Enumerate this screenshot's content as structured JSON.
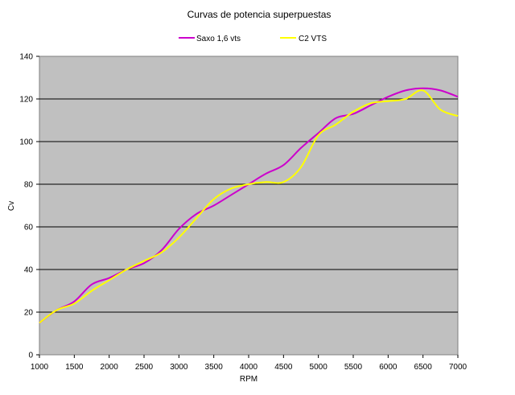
{
  "chart_data": {
    "type": "line",
    "title": "Curvas de potencia superpuestas",
    "xlabel": "RPM",
    "ylabel": "Cv",
    "xlim": [
      1000,
      7000
    ],
    "ylim": [
      0,
      140
    ],
    "x_ticks": [
      1000,
      1500,
      2000,
      2500,
      3000,
      3500,
      4000,
      4500,
      5000,
      5500,
      6000,
      6500,
      7000
    ],
    "y_ticks": [
      0,
      20,
      40,
      60,
      80,
      100,
      120,
      140
    ],
    "grid": "horizontal",
    "legend_position": "top",
    "series": [
      {
        "name": "Saxo 1,6 vts",
        "color": "#cc00cc",
        "x": [
          1000,
          1250,
          1500,
          1750,
          2000,
          2250,
          2500,
          2750,
          3000,
          3250,
          3500,
          3750,
          4000,
          4250,
          4500,
          4750,
          5000,
          5250,
          5500,
          5750,
          6000,
          6250,
          6500,
          6750,
          7000
        ],
        "values": [
          15,
          21,
          25,
          33,
          36,
          40,
          43,
          49,
          59,
          66,
          70,
          75,
          80,
          85,
          89,
          97,
          104,
          111,
          113,
          117,
          121,
          124,
          125,
          124,
          121
        ]
      },
      {
        "name": "C2 VTS",
        "color": "#ffff00",
        "x": [
          1000,
          1250,
          1500,
          1750,
          2000,
          2250,
          2500,
          2750,
          3000,
          3250,
          3500,
          3750,
          4000,
          4250,
          4500,
          4750,
          5000,
          5250,
          5500,
          5750,
          6000,
          6250,
          6500,
          6750,
          7000
        ],
        "values": [
          15,
          21,
          24,
          30,
          35,
          40,
          44,
          48,
          55,
          64,
          73,
          78,
          80,
          81,
          81,
          88,
          103,
          108,
          114,
          118,
          119,
          120,
          124,
          115,
          112
        ]
      }
    ]
  }
}
